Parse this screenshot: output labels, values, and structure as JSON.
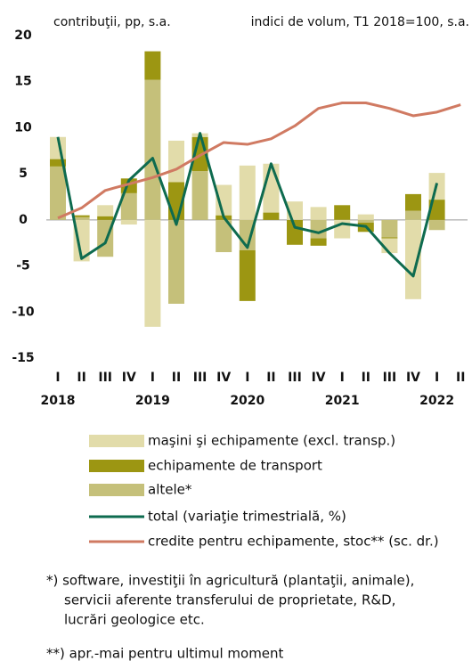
{
  "chart_data": {
    "type": "bar",
    "left_axis_label": "contribuţii, pp, s.a.",
    "right_axis_label": "indici de volum, T1 2018=100, s.a.",
    "categories": [
      "I",
      "II",
      "III",
      "IV",
      "I",
      "II",
      "III",
      "IV",
      "I",
      "II",
      "III",
      "IV",
      "I",
      "II",
      "III",
      "IV",
      "I",
      "II"
    ],
    "year_labels": [
      "2018",
      "2019",
      "2020",
      "2021",
      "2022"
    ],
    "ylim": [
      -15,
      20
    ],
    "yticks": [
      -15,
      -10,
      -5,
      0,
      5,
      10,
      15,
      20
    ],
    "y2lim": [
      70,
      140
    ],
    "series": [
      {
        "name": "maşini şi echipamente (excl. transp.)",
        "type": "bar",
        "color": "#e2dcaa",
        "values": [
          2.4,
          -4.5,
          1.2,
          -0.5,
          -11.6,
          4.5,
          0.4,
          3.3,
          5.9,
          5.3,
          2.0,
          1.4,
          -2.0,
          0.6,
          -1.6,
          -8.6,
          2.9,
          null
        ]
      },
      {
        "name": "echipamente de transport",
        "type": "bar",
        "color": "#9c9612",
        "values": [
          0.8,
          0.2,
          0.4,
          1.6,
          3.1,
          4.1,
          3.7,
          0.5,
          -5.5,
          0.8,
          -2.7,
          -0.8,
          1.6,
          -1.0,
          -0.1,
          1.8,
          2.2,
          null
        ]
      },
      {
        "name": "altele*",
        "type": "bar",
        "color": "#c5c07a",
        "values": [
          5.8,
          0.3,
          -4.0,
          2.9,
          15.2,
          -9.1,
          5.3,
          -3.5,
          -3.3,
          0,
          0,
          -2.0,
          0,
          -0.3,
          -1.9,
          1.0,
          -1.1,
          null
        ]
      },
      {
        "name": "total (variaţie trimestrială,  %)",
        "type": "line",
        "color": "#0e6b4f",
        "values": [
          9.0,
          -4.2,
          -2.5,
          4.3,
          6.7,
          -0.5,
          9.4,
          0.3,
          -3.0,
          6.1,
          -0.8,
          -1.4,
          -0.4,
          -0.7,
          -3.6,
          -6.1,
          4.0,
          null
        ]
      },
      {
        "name": "credite pentru echipamente, stoc** (sc. dr.)",
        "type": "line",
        "axis": "y2",
        "color": "#d07a62",
        "values": [
          100.4,
          102.6,
          106.4,
          107.8,
          109.2,
          111.0,
          114.0,
          116.8,
          116.4,
          117.6,
          120.4,
          124.2,
          125.4,
          125.4,
          124.2,
          122.6,
          123.4,
          125.0
        ]
      }
    ],
    "notes": [
      "*) software, investiţii în agricultură (plantaţii, animale),",
      "servicii aferente transferului de proprietate, R&D,",
      "lucrări geologice etc.",
      "**) apr.-mai pentru ultimul moment"
    ]
  }
}
